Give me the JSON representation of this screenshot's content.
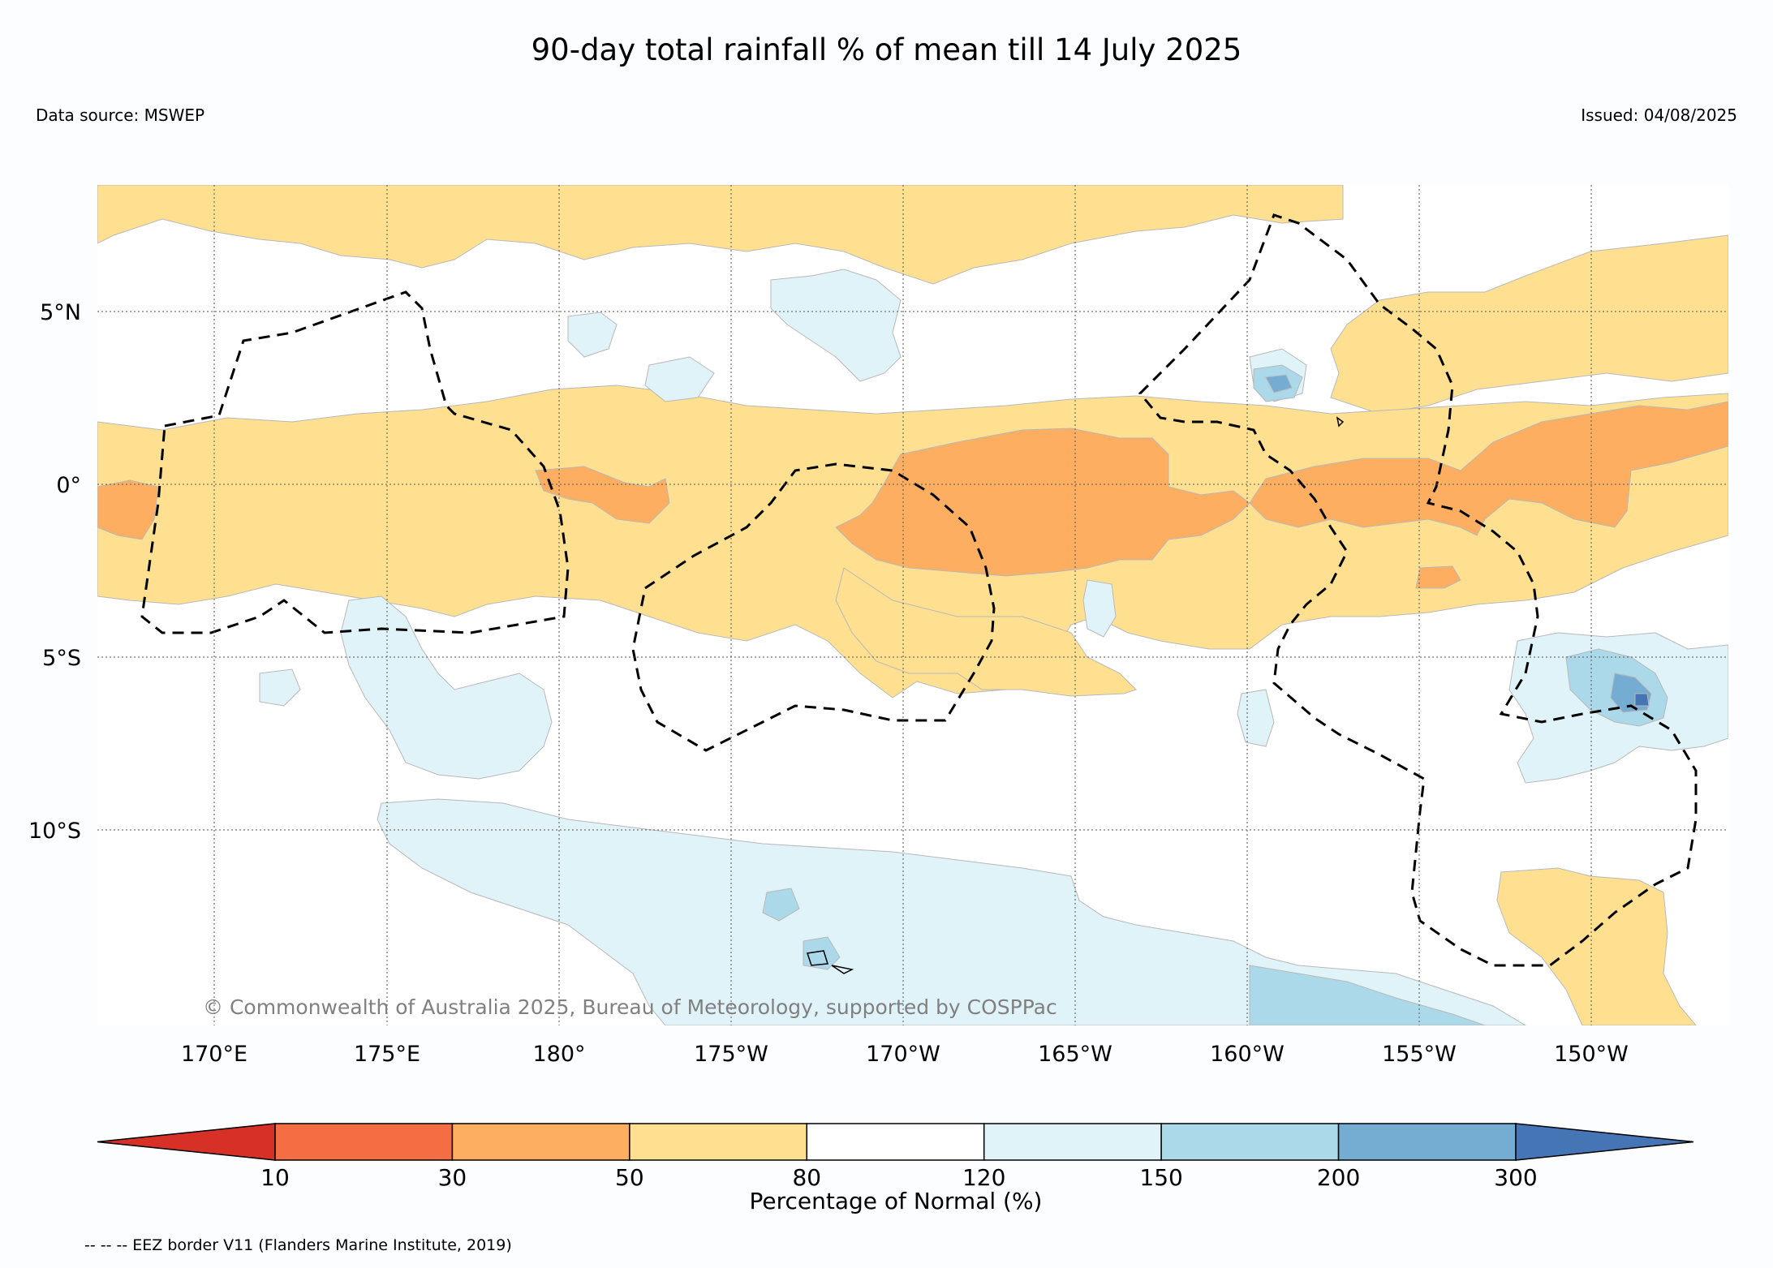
{
  "title": "90-day total rainfall % of mean till 14 July 2025",
  "data_source": "Data source: MSWEP",
  "issued": "Issued: 04/08/2025",
  "copyright": "© Commonwealth of Australia 2025, Bureau of Meteorology, supported by COSPPac",
  "footnote": "-- -- -- EEZ border V11 (Flanders Marine Institute, 2019)",
  "latitude_labels": [
    "5°N",
    "0°",
    "5°S",
    "10°S"
  ],
  "longitude_labels": [
    "170°E",
    "175°E",
    "180°",
    "175°W",
    "170°W",
    "165°W",
    "160°W",
    "155°W",
    "150°W"
  ],
  "colorbar": {
    "label": "Percentage of Normal (%)",
    "ticks": [
      "10",
      "30",
      "50",
      "80",
      "120",
      "150",
      "200",
      "300"
    ],
    "colors": [
      "#d73027",
      "#f46d43",
      "#fdae61",
      "#fee090",
      "#ffffff",
      "#e0f3f8",
      "#abd9e9",
      "#74add1",
      "#4575b4"
    ]
  },
  "legend_colors": {
    "very_dry": "#fdae61",
    "dry": "#fee090",
    "wet": "#e0f3f8",
    "very_wet": "#abd9e9",
    "wettest": "#74add1"
  }
}
